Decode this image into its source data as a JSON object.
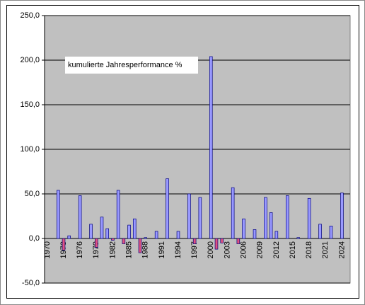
{
  "chart_data": {
    "type": "bar",
    "annotation": "kumulierte Jahresperformance %",
    "categories": [
      "1970",
      null,
      null,
      "1973",
      null,
      null,
      "1976",
      null,
      null,
      "1979",
      null,
      null,
      "1982",
      null,
      null,
      "1985",
      null,
      null,
      "1988",
      null,
      null,
      "1991",
      null,
      null,
      "1994",
      null,
      null,
      "1997",
      null,
      null,
      "2000",
      null,
      null,
      "2003",
      null,
      null,
      "2006",
      null,
      null,
      "2009",
      null,
      null,
      "2012",
      null,
      null,
      "2015",
      null,
      null,
      "2018",
      null,
      null,
      "2021",
      null,
      null,
      "2024",
      null
    ],
    "values": [
      0,
      0,
      54,
      -13,
      3,
      0,
      48,
      0,
      16,
      -10,
      24,
      11,
      -2,
      54,
      -6,
      15,
      22,
      -16,
      1,
      0,
      8,
      0,
      67,
      0,
      8,
      0,
      50,
      -6,
      46,
      0,
      204,
      -12,
      -5,
      0,
      57,
      -6,
      22,
      0,
      10,
      0,
      46,
      29,
      8,
      0,
      48,
      0,
      1,
      0,
      45,
      0,
      16,
      0,
      14,
      0,
      51,
      0
    ],
    "color": "#9999ff",
    "negative_color": "#e0527f",
    "ylim": [
      -50,
      250
    ],
    "yticks": [
      {
        "value": -50,
        "label": "-50,0"
      },
      {
        "value": 0,
        "label": "0,0"
      },
      {
        "value": 50,
        "label": "50,0"
      },
      {
        "value": 100,
        "label": "100,0"
      },
      {
        "value": 150,
        "label": "150,0"
      },
      {
        "value": 200,
        "label": "200,0"
      },
      {
        "value": 250,
        "label": "250,0"
      }
    ],
    "grid": true
  }
}
